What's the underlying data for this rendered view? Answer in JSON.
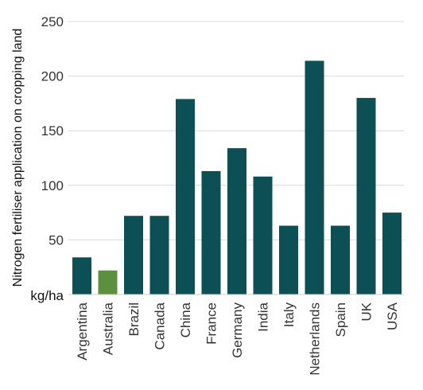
{
  "chart_data": {
    "type": "bar",
    "ylabel": "Nitrogen fertiliser application on cropping land",
    "unit_label": "kg/ha",
    "ylim": [
      0,
      250
    ],
    "yticks": [
      50,
      100,
      150,
      200,
      250
    ],
    "grid": true,
    "categories": [
      "Argentina",
      "Australia",
      "Brazil",
      "Canada",
      "China",
      "France",
      "Germany",
      "India",
      "Italy",
      "Netherlands",
      "Spain",
      "UK",
      "USA"
    ],
    "values": [
      34,
      22,
      72,
      72,
      179,
      113,
      134,
      108,
      63,
      214,
      63,
      180,
      75
    ],
    "colors": {
      "default": "#0c4f55",
      "highlight": "#5e8f3e",
      "highlight_category": "Australia"
    }
  }
}
